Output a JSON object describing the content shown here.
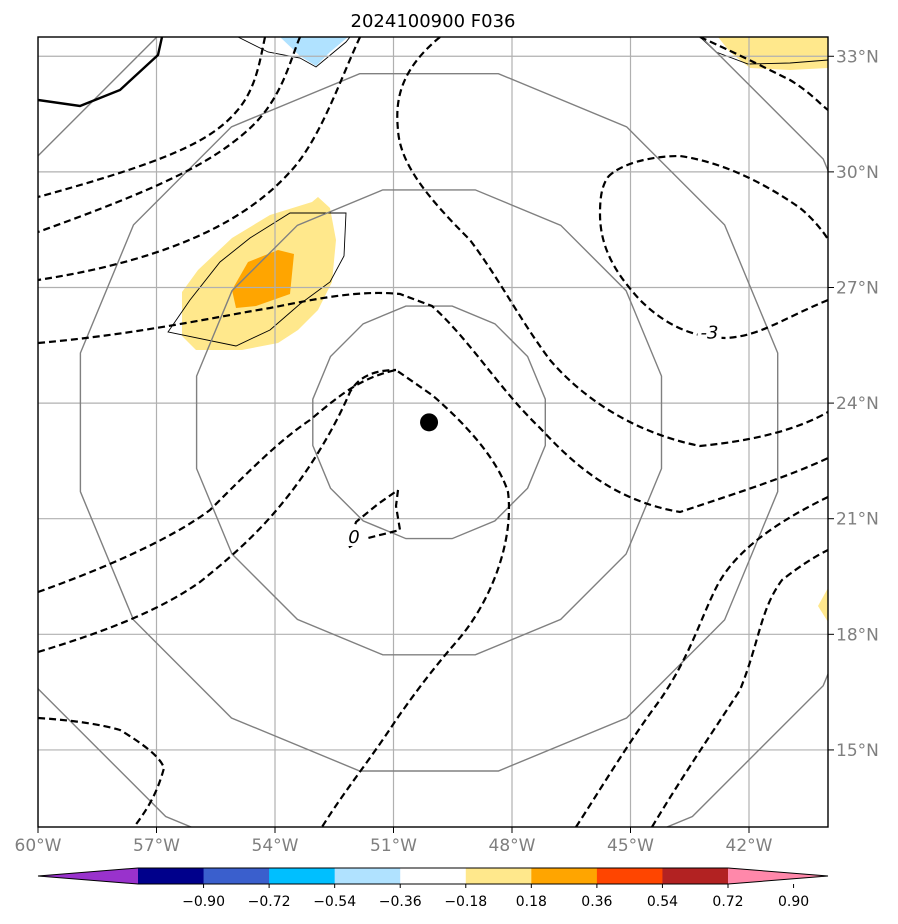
{
  "chart_data": {
    "type": "map",
    "title": "2024100900 F036",
    "x_ticks": [
      "60°W",
      "57°W",
      "54°W",
      "51°W",
      "48°W",
      "45°W",
      "42°W"
    ],
    "x_tick_values": [
      -60,
      -57,
      -54,
      -51,
      -48,
      -45,
      -42
    ],
    "y_ticks": [
      "15°N",
      "18°N",
      "21°N",
      "24°N",
      "27°N",
      "30°N",
      "33°N"
    ],
    "y_tick_values": [
      15,
      18,
      21,
      24,
      27,
      30,
      33
    ],
    "xlim": [
      -60,
      -40
    ],
    "ylim": [
      13,
      33.5
    ],
    "grid": true,
    "center_marker": {
      "lon": -50.1,
      "lat": 23.5
    },
    "range_ring_radii_deg": [
      3,
      6,
      9,
      12
    ],
    "contour_labels": [
      {
        "text": "0",
        "lon": -52,
        "lat": 20.5
      },
      {
        "text": "-3",
        "lon": -43,
        "lat": 25.8
      }
    ],
    "colorbar": {
      "orientation": "horizontal",
      "extend": "both",
      "tick_labels": [
        "−0.90",
        "−0.72",
        "−0.54",
        "−0.36",
        "−0.18",
        "0.18",
        "0.36",
        "0.54",
        "0.72",
        "0.90"
      ],
      "tick_values": [
        -0.9,
        -0.72,
        -0.54,
        -0.36,
        -0.18,
        0.18,
        0.36,
        0.54,
        0.72,
        0.9
      ],
      "colors": [
        "#9932cc",
        "#00008b",
        "#3a5fcd",
        "#00bfff",
        "#b0e2ff",
        "#ffffff",
        "#ffe88c",
        "#ffa500",
        "#ff4500",
        "#b22222",
        "#ff88aa"
      ]
    }
  }
}
